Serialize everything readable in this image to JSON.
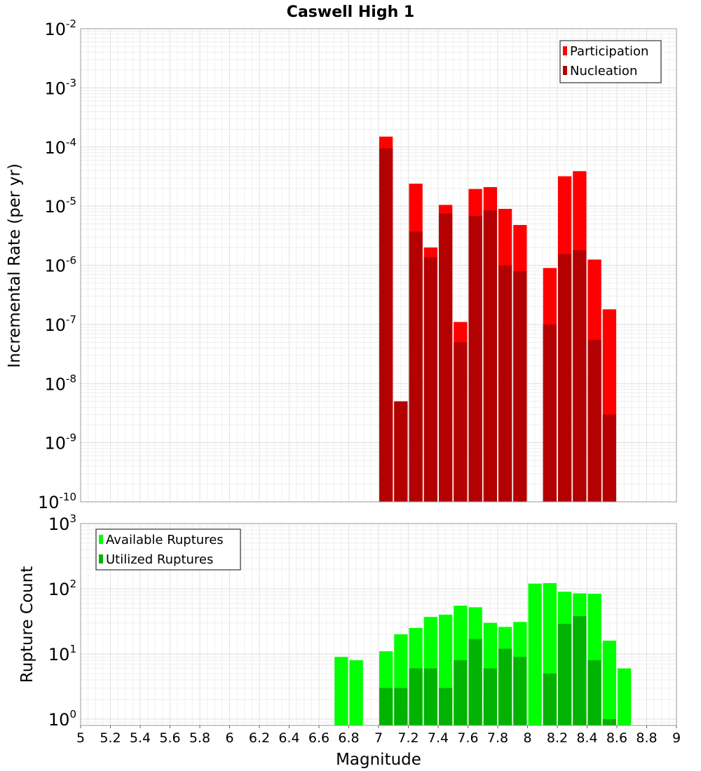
{
  "chart_data": [
    {
      "type": "bar",
      "title": "Caswell High 1",
      "xlabel": "",
      "ylabel": "Incremental Rate (per yr)",
      "yscale": "log",
      "ylim": [
        1e-10,
        0.01
      ],
      "xlim": [
        5,
        9
      ],
      "yticks": [
        {
          "base": "10",
          "exp": "-10",
          "value": 1e-10
        },
        {
          "base": "10",
          "exp": "-9",
          "value": 1e-09
        },
        {
          "base": "10",
          "exp": "-8",
          "value": 1e-08
        },
        {
          "base": "10",
          "exp": "-7",
          "value": 1e-07
        },
        {
          "base": "10",
          "exp": "-6",
          "value": 1e-06
        },
        {
          "base": "10",
          "exp": "-5",
          "value": 1e-05
        },
        {
          "base": "10",
          "exp": "-4",
          "value": 0.0001
        },
        {
          "base": "10",
          "exp": "-3",
          "value": 0.001
        },
        {
          "base": "10",
          "exp": "-2",
          "value": 0.01
        }
      ],
      "grid": true,
      "legend_position": "top-right",
      "x": [
        7.05,
        7.15,
        7.25,
        7.35,
        7.45,
        7.55,
        7.65,
        7.75,
        7.85,
        7.95,
        8.15,
        8.25,
        8.35,
        8.45,
        8.55
      ],
      "series": [
        {
          "name": "Participation",
          "color": "#ff0000",
          "values": [
            0.00015,
            5e-09,
            2.4e-05,
            2e-06,
            1.05e-05,
            1.1e-07,
            1.95e-05,
            2.1e-05,
            9e-06,
            4.8e-06,
            9e-07,
            3.2e-05,
            3.9e-05,
            1.25e-06,
            1.8e-07
          ]
        },
        {
          "name": "Nucleation",
          "color": "#b30000",
          "values": [
            9.5e-05,
            5e-09,
            3.7e-06,
            1.35e-06,
            7.5e-06,
            5e-08,
            6.8e-06,
            8.5e-06,
            1e-06,
            8e-07,
            1e-07,
            1.55e-06,
            1.8e-06,
            5.5e-08,
            3e-09
          ]
        }
      ]
    },
    {
      "type": "bar",
      "title": "",
      "xlabel": "Magnitude",
      "ylabel": "Rupture Count",
      "yscale": "log",
      "ylim": [
        0.8,
        1000
      ],
      "xlim": [
        5,
        9
      ],
      "xticks": [
        "5",
        "5.2",
        "5.4",
        "5.6",
        "5.8",
        "6",
        "6.2",
        "6.4",
        "6.6",
        "6.8",
        "7",
        "7.2",
        "7.4",
        "7.6",
        "7.8",
        "8",
        "8.2",
        "8.4",
        "8.6",
        "8.8",
        "9"
      ],
      "yticks": [
        {
          "base": "10",
          "exp": "0",
          "value": 1
        },
        {
          "base": "10",
          "exp": "1",
          "value": 10
        },
        {
          "base": "10",
          "exp": "2",
          "value": 100
        },
        {
          "base": "10",
          "exp": "3",
          "value": 1000
        }
      ],
      "grid": true,
      "legend_position": "top-left",
      "x": [
        6.75,
        6.85,
        7.05,
        7.15,
        7.25,
        7.35,
        7.45,
        7.55,
        7.65,
        7.75,
        7.85,
        7.95,
        8.05,
        8.15,
        8.25,
        8.35,
        8.45,
        8.55,
        8.65
      ],
      "series": [
        {
          "name": "Available Ruptures",
          "color": "#00ff00",
          "values": [
            9,
            8,
            11,
            20,
            25,
            37,
            40,
            55,
            52,
            30,
            26,
            31,
            120,
            122,
            90,
            85,
            84,
            16,
            6
          ]
        },
        {
          "name": "Utilized Ruptures",
          "color": "#00b300",
          "values": [
            0,
            0,
            3,
            3,
            6,
            6,
            3,
            8,
            17,
            6,
            12,
            9,
            0,
            5,
            29,
            38,
            8,
            1,
            0
          ]
        }
      ]
    }
  ]
}
